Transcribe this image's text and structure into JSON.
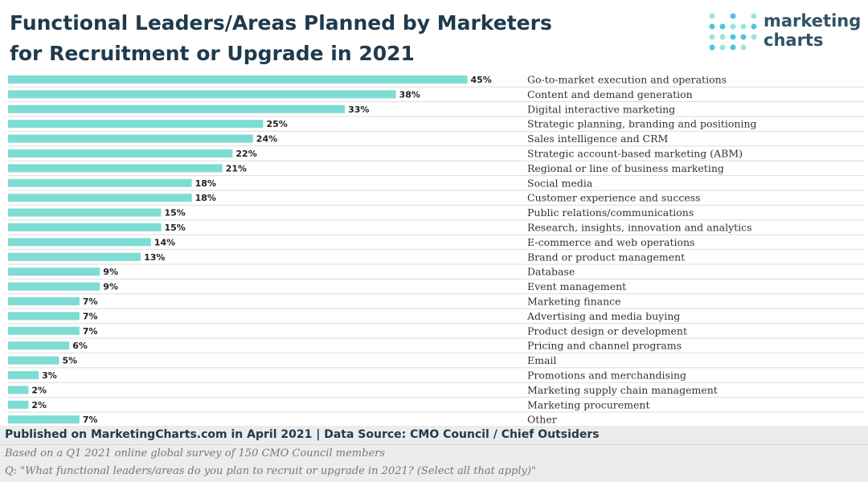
{
  "title": {
    "line1": "Functional Leaders/Areas Planned by Marketers",
    "line2": "for Recruitment or Upgrade in 2021"
  },
  "brand": {
    "line1": "marketing",
    "line2": "charts",
    "icon": "dot-grid-logo-icon"
  },
  "colors": {
    "bar": "#7ddcd3",
    "grid": "#dddddd",
    "title": "#1f3a4d",
    "label": "#333333"
  },
  "chart_data": {
    "type": "bar",
    "orientation": "horizontal",
    "title": "Functional Leaders/Areas Planned by Marketers for Recruitment or Upgrade in 2021",
    "xlabel": "",
    "ylabel": "",
    "xlim": [
      0,
      50
    ],
    "value_suffix": "%",
    "grid": true,
    "categories": [
      "Go-to-market execution and operations",
      "Content and demand generation",
      "Digital interactive marketing",
      "Strategic planning, branding and positioning",
      "Sales intelligence and CRM",
      "Strategic account-based marketing (ABM)",
      "Regional or line of business marketing",
      "Social media",
      "Customer experience and success",
      "Public relations/communications",
      "Research, insights, innovation and analytics",
      "E-commerce and web operations",
      "Brand or product management",
      "Database",
      "Event management",
      "Marketing finance",
      "Advertising and media buying",
      "Product design or development",
      "Pricing and channel programs",
      "Email",
      "Promotions and merchandising",
      "Marketing supply chain management",
      "Marketing procurement",
      "Other"
    ],
    "values": [
      45,
      38,
      33,
      25,
      24,
      22,
      21,
      18,
      18,
      15,
      15,
      14,
      13,
      9,
      9,
      7,
      7,
      7,
      6,
      5,
      3,
      2,
      2,
      7
    ]
  },
  "footer": {
    "published": "Published on MarketingCharts.com in April 2021 | Data Source: CMO Council / Chief Outsiders",
    "note1": "Based on a Q1 2021 online global survey of 150 CMO Council members",
    "note2": "Q: \"What functional leaders/areas do you plan to recruit or upgrade in 2021? (Select all that apply)\""
  }
}
